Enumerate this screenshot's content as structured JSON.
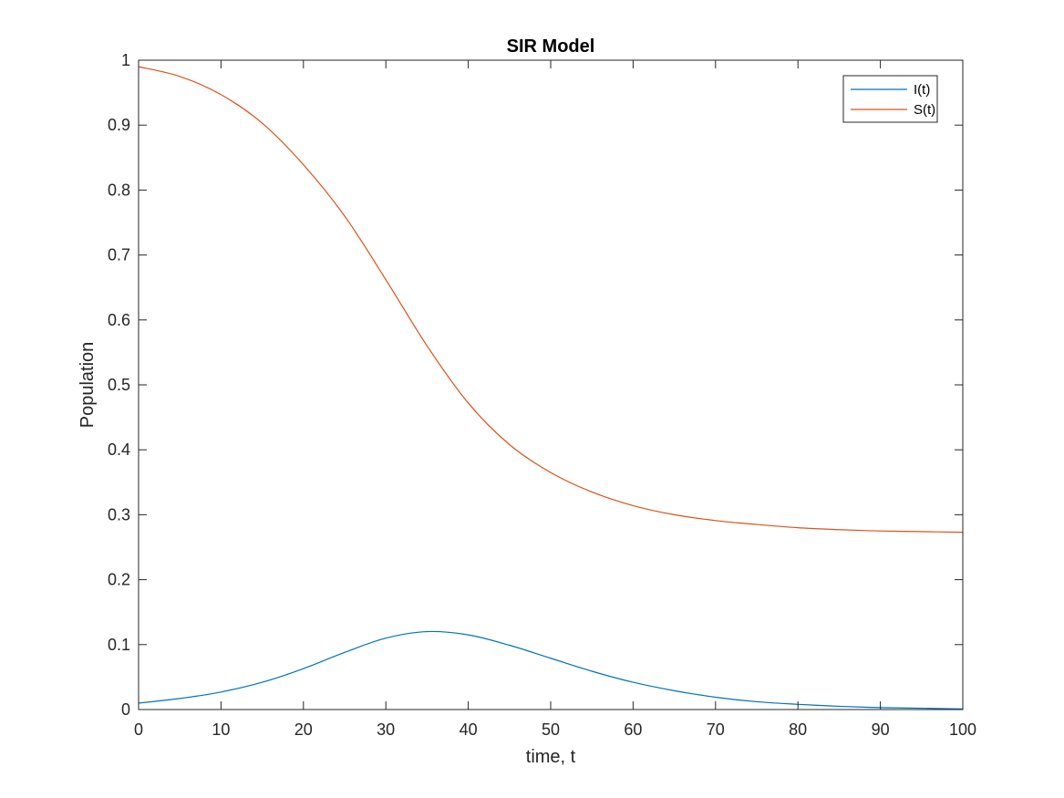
{
  "chart_data": {
    "type": "line",
    "title": "SIR Model",
    "xlabel": "time, t",
    "ylabel": "Population",
    "xlim": [
      0,
      100
    ],
    "ylim": [
      0,
      1
    ],
    "xticks": [
      0,
      10,
      20,
      30,
      40,
      50,
      60,
      70,
      80,
      90,
      100
    ],
    "yticks": [
      0,
      0.1,
      0.2,
      0.3,
      0.4,
      0.5,
      0.6,
      0.7,
      0.8,
      0.9,
      1
    ],
    "xtick_labels": [
      "0",
      "10",
      "20",
      "30",
      "40",
      "50",
      "60",
      "70",
      "80",
      "90",
      "100"
    ],
    "ytick_labels": [
      "0",
      "0.1",
      "0.2",
      "0.3",
      "0.4",
      "0.5",
      "0.6",
      "0.7",
      "0.8",
      "0.9",
      "1"
    ],
    "grid": false,
    "legend": {
      "position": "top-right"
    },
    "x": [
      0,
      5,
      10,
      15,
      20,
      25,
      30,
      35,
      40,
      45,
      50,
      55,
      60,
      65,
      70,
      75,
      80,
      85,
      90,
      95,
      100
    ],
    "series": [
      {
        "name": "I(t)",
        "color": "#0072BD",
        "values": [
          0.01,
          0.017,
          0.027,
          0.042,
          0.063,
          0.088,
          0.11,
          0.12,
          0.115,
          0.099,
          0.079,
          0.059,
          0.042,
          0.029,
          0.019,
          0.012,
          0.008,
          0.005,
          0.003,
          0.002,
          0.001
        ]
      },
      {
        "name": "S(t)",
        "color": "#D95319",
        "values": [
          0.99,
          0.975,
          0.947,
          0.903,
          0.839,
          0.76,
          0.662,
          0.56,
          0.472,
          0.408,
          0.365,
          0.335,
          0.314,
          0.3,
          0.291,
          0.285,
          0.28,
          0.277,
          0.275,
          0.274,
          0.273
        ]
      }
    ]
  }
}
